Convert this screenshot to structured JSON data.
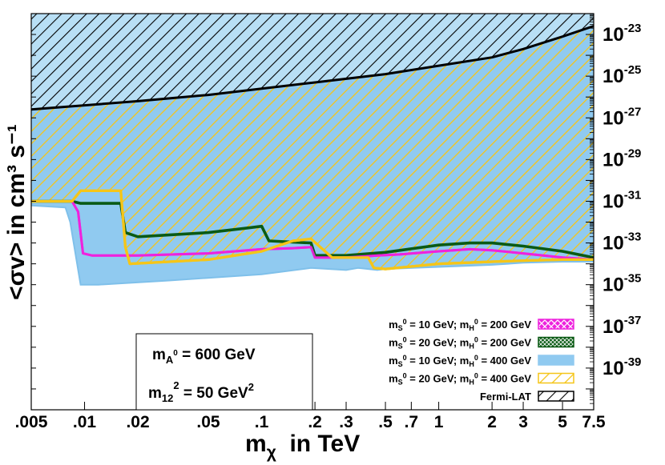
{
  "chart_data": {
    "type": "area",
    "xlabel_main": "m",
    "xlabel_sub": "χ",
    "xlabel_rest": "  in TeV",
    "ylabel": "<σv> in cm³ s⁻¹",
    "xlim": [
      0.005,
      7.5
    ],
    "x_scale": "log",
    "y_scale": "log",
    "ylim_exponents": [
      -41,
      -22
    ],
    "x_ticks": [
      {
        "v": 0.005,
        "label": ".005"
      },
      {
        "v": 0.01,
        "label": ".01"
      },
      {
        "v": 0.02,
        "label": ".02"
      },
      {
        "v": 0.05,
        "label": ".05"
      },
      {
        "v": 0.1,
        "label": ".1"
      },
      {
        "v": 0.2,
        "label": ".2"
      },
      {
        "v": 0.3,
        "label": ".3"
      },
      {
        "v": 0.5,
        "label": ".5"
      },
      {
        "v": 0.7,
        "label": ".7"
      },
      {
        "v": 1,
        "label": "1"
      },
      {
        "v": 2,
        "label": "2"
      },
      {
        "v": 3,
        "label": "3"
      },
      {
        "v": 5,
        "label": "5"
      },
      {
        "v": 7.5,
        "label": "7.5"
      }
    ],
    "y_ticks": [
      {
        "exp": -23,
        "base": "10",
        "sup": "-23"
      },
      {
        "exp": -25,
        "base": "10",
        "sup": "-25"
      },
      {
        "exp": -27,
        "base": "10",
        "sup": "-27"
      },
      {
        "exp": -29,
        "base": "10",
        "sup": "-29"
      },
      {
        "exp": -31,
        "base": "10",
        "sup": "-31"
      },
      {
        "exp": -33,
        "base": "10",
        "sup": "-33"
      },
      {
        "exp": -35,
        "base": "10",
        "sup": "-35"
      },
      {
        "exp": -37,
        "base": "10",
        "sup": "-37"
      },
      {
        "exp": -39,
        "base": "10",
        "sup": "-39"
      }
    ],
    "legend_position": "bottom-right",
    "series": [
      {
        "name": "m_S0 = 10 GeV; m_H0 = 200 GeV",
        "color": "#ee22dd",
        "style": "crosshatch",
        "boundary": [
          [
            0.005,
            -31.0
          ],
          [
            0.0085,
            -31.0
          ],
          [
            0.0092,
            -31.5
          ],
          [
            0.0098,
            -33.5
          ],
          [
            0.011,
            -33.6
          ],
          [
            0.02,
            -33.6
          ],
          [
            0.05,
            -33.5
          ],
          [
            0.1,
            -33.3
          ],
          [
            0.15,
            -33.25
          ],
          [
            0.19,
            -33.2
          ],
          [
            0.2,
            -33.7
          ],
          [
            0.3,
            -33.7
          ],
          [
            0.45,
            -33.6
          ],
          [
            0.6,
            -33.55
          ],
          [
            1,
            -33.4
          ],
          [
            1.5,
            -33.3
          ],
          [
            2,
            -33.35
          ],
          [
            3,
            -33.5
          ],
          [
            5,
            -33.7
          ],
          [
            7.5,
            -33.8
          ]
        ]
      },
      {
        "name": "m_S0 = 20 GeV; m_H0 = 200 GeV",
        "color": "#0a5a14",
        "style": "mesh",
        "boundary": [
          [
            0.005,
            -31.0
          ],
          [
            0.0085,
            -31.0
          ],
          [
            0.0095,
            -31.1
          ],
          [
            0.016,
            -31.1
          ],
          [
            0.017,
            -32.5
          ],
          [
            0.02,
            -32.7
          ],
          [
            0.05,
            -32.5
          ],
          [
            0.08,
            -32.3
          ],
          [
            0.1,
            -32.2
          ],
          [
            0.11,
            -32.9
          ],
          [
            0.19,
            -33.0
          ],
          [
            0.2,
            -33.6
          ],
          [
            0.3,
            -33.6
          ],
          [
            0.5,
            -33.45
          ],
          [
            1,
            -33.1
          ],
          [
            1.5,
            -33.0
          ],
          [
            2,
            -33.0
          ],
          [
            3,
            -33.15
          ],
          [
            5,
            -33.4
          ],
          [
            7.5,
            -33.7
          ]
        ]
      },
      {
        "name": "m_S0 = 10 GeV; m_H0 = 400 GeV",
        "color": "#90caf0",
        "style": "solid",
        "boundary": [
          [
            0.005,
            -31.2
          ],
          [
            0.0078,
            -31.3
          ],
          [
            0.0083,
            -32.0
          ],
          [
            0.0095,
            -35.0
          ],
          [
            0.012,
            -35.0
          ],
          [
            0.03,
            -34.8
          ],
          [
            0.1,
            -34.5
          ],
          [
            0.19,
            -34.2
          ],
          [
            0.3,
            -34.3
          ],
          [
            0.35,
            -34.2
          ],
          [
            0.45,
            -34.3
          ],
          [
            0.5,
            -34.25
          ],
          [
            1,
            -34.15
          ],
          [
            2,
            -34.05
          ],
          [
            3,
            -33.95
          ],
          [
            5,
            -33.9
          ],
          [
            7.5,
            -33.9
          ]
        ]
      },
      {
        "name": "m_S0 = 20 GeV; m_H0 = 400 GeV",
        "color": "#f5c518",
        "style": "diagonal",
        "boundary": [
          [
            0.005,
            -31.0
          ],
          [
            0.0085,
            -31.0
          ],
          [
            0.0095,
            -30.5
          ],
          [
            0.016,
            -30.5
          ],
          [
            0.017,
            -33.2
          ],
          [
            0.018,
            -34.0
          ],
          [
            0.05,
            -33.8
          ],
          [
            0.1,
            -33.4
          ],
          [
            0.15,
            -32.9
          ],
          [
            0.19,
            -32.8
          ],
          [
            0.25,
            -33.7
          ],
          [
            0.4,
            -33.7
          ],
          [
            0.43,
            -34.2
          ],
          [
            0.5,
            -34.25
          ],
          [
            1,
            -34.0
          ],
          [
            2,
            -33.9
          ],
          [
            3,
            -33.85
          ],
          [
            5,
            -33.8
          ],
          [
            7.5,
            -33.8
          ]
        ]
      },
      {
        "name": "Fermi-LAT",
        "color": "#000000",
        "style": "diagonal-black",
        "boundary": [
          [
            0.005,
            -26.6
          ],
          [
            0.007,
            -26.5
          ],
          [
            0.01,
            -26.4
          ],
          [
            0.02,
            -26.2
          ],
          [
            0.05,
            -25.9
          ],
          [
            0.1,
            -25.6
          ],
          [
            0.2,
            -25.3
          ],
          [
            0.5,
            -24.9
          ],
          [
            1,
            -24.5
          ],
          [
            2,
            -24.1
          ],
          [
            3,
            -23.7
          ],
          [
            5,
            -23.1
          ],
          [
            7.5,
            -22.6
          ]
        ]
      }
    ]
  },
  "legend": [
    {
      "p1": "m",
      "s1": "S",
      "q1": "0",
      "p2": " = 10 GeV; m",
      "s2": "H",
      "q2": "0",
      "p3": " = 200 GeV"
    },
    {
      "p1": "m",
      "s1": "S",
      "q1": "0",
      "p2": " = 20 GeV; m",
      "s2": "H",
      "q2": "0",
      "p3": " = 200 GeV"
    },
    {
      "p1": "m",
      "s1": "S",
      "q1": "0",
      "p2": " = 10 GeV; m",
      "s2": "H",
      "q2": "0",
      "p3": " = 400 GeV"
    },
    {
      "p1": "m",
      "s1": "S",
      "q1": "0",
      "p2": " = 20 GeV; m",
      "s2": "H",
      "q2": "0",
      "p3": " = 400 GeV"
    },
    {
      "p1": "Fermi-LAT",
      "s1": "",
      "q1": "",
      "p2": "",
      "s2": "",
      "q2": "",
      "p3": ""
    }
  ],
  "param_box": {
    "line1_m": "m",
    "line1_sub": "A",
    "line1_supsub": "0",
    "line1_rest": " = 600 GeV",
    "line2_m": "m",
    "line2_sub": "12",
    "line2_sup": "2",
    "line2_rest": " = 50 GeV",
    "line2_unit_sup": "2"
  }
}
